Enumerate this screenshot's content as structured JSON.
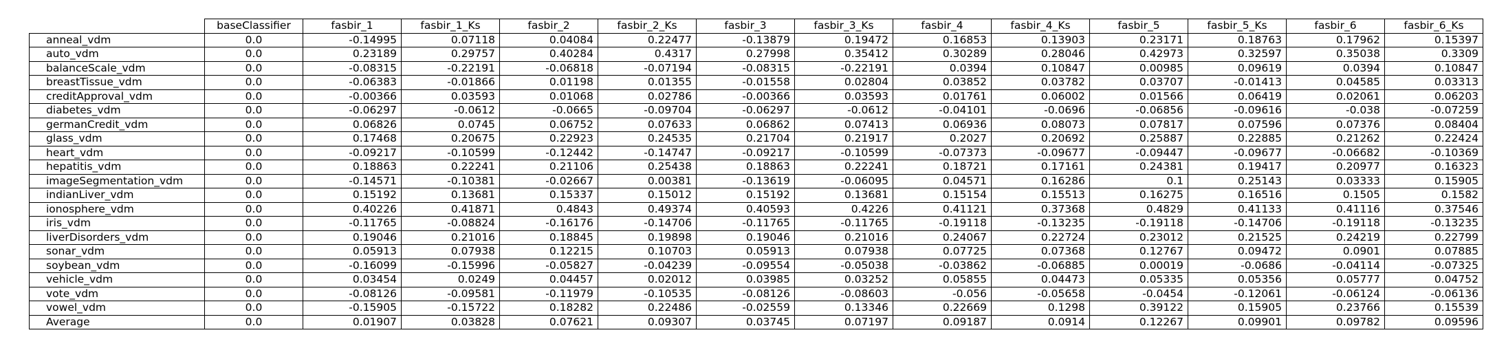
{
  "table": {
    "corner": "",
    "columns": [
      "baseClassifier",
      "fasbir_1",
      "fasbir_1_Ks",
      "fasbir_2",
      "fasbir_2_Ks",
      "fasbir_3",
      "fasbir_3_Ks",
      "fasbir_4",
      "fasbir_4_Ks",
      "fasbir_5",
      "fasbir_5_Ks",
      "fasbir_6",
      "fasbir_6_Ks"
    ],
    "rows": [
      {
        "name": "anneal_vdm",
        "values": [
          "0.0",
          "-0.14995",
          "0.07118",
          "0.04084",
          "0.22477",
          "-0.13879",
          "0.19472",
          "0.16853",
          "0.13903",
          "0.23171",
          "0.18763",
          "0.17962",
          "0.15397"
        ]
      },
      {
        "name": "auto_vdm",
        "values": [
          "0.0",
          "0.23189",
          "0.29757",
          "0.40284",
          "0.4317",
          "0.27998",
          "0.35412",
          "0.30289",
          "0.28046",
          "0.42973",
          "0.32597",
          "0.35038",
          "0.3309"
        ]
      },
      {
        "name": "balanceScale_vdm",
        "values": [
          "0.0",
          "-0.08315",
          "-0.22191",
          "-0.06818",
          "-0.07194",
          "-0.08315",
          "-0.22191",
          "0.0394",
          "0.10847",
          "0.00985",
          "0.09619",
          "0.0394",
          "0.10847"
        ]
      },
      {
        "name": "breastTissue_vdm",
        "values": [
          "0.0",
          "-0.06383",
          "-0.01866",
          "0.01198",
          "0.01355",
          "-0.01558",
          "0.02804",
          "0.03852",
          "0.03782",
          "0.03707",
          "-0.01413",
          "0.04585",
          "0.03313"
        ]
      },
      {
        "name": "creditApproval_vdm",
        "values": [
          "0.0",
          "-0.00366",
          "0.03593",
          "0.01068",
          "0.02786",
          "-0.00366",
          "0.03593",
          "0.01761",
          "0.06002",
          "0.01566",
          "0.06419",
          "0.02061",
          "0.06203"
        ]
      },
      {
        "name": "diabetes_vdm",
        "values": [
          "0.0",
          "-0.06297",
          "-0.0612",
          "-0.0665",
          "-0.09704",
          "-0.06297",
          "-0.0612",
          "-0.04101",
          "-0.0696",
          "-0.06856",
          "-0.09616",
          "-0.038",
          "-0.07259"
        ]
      },
      {
        "name": "germanCredit_vdm",
        "values": [
          "0.0",
          "0.06826",
          "0.0745",
          "0.06752",
          "0.07633",
          "0.06862",
          "0.07413",
          "0.06936",
          "0.08073",
          "0.07817",
          "0.07596",
          "0.07376",
          "0.08404"
        ]
      },
      {
        "name": "glass_vdm",
        "values": [
          "0.0",
          "0.17468",
          "0.20675",
          "0.22923",
          "0.24535",
          "0.21704",
          "0.21917",
          "0.2027",
          "0.20692",
          "0.25887",
          "0.22885",
          "0.21262",
          "0.22424"
        ]
      },
      {
        "name": "heart_vdm",
        "values": [
          "0.0",
          "-0.09217",
          "-0.10599",
          "-0.12442",
          "-0.14747",
          "-0.09217",
          "-0.10599",
          "-0.07373",
          "-0.09677",
          "-0.09447",
          "-0.09677",
          "-0.06682",
          "-0.10369"
        ]
      },
      {
        "name": "hepatitis_vdm",
        "values": [
          "0.0",
          "0.18863",
          "0.22241",
          "0.21106",
          "0.25438",
          "0.18863",
          "0.22241",
          "0.18721",
          "0.17161",
          "0.24381",
          "0.19417",
          "0.20977",
          "0.16323"
        ]
      },
      {
        "name": "imageSegmentation_vdm",
        "values": [
          "0.0",
          "-0.14571",
          "-0.10381",
          "-0.02667",
          "0.00381",
          "-0.13619",
          "-0.06095",
          "0.04571",
          "0.16286",
          "0.1",
          "0.25143",
          "0.03333",
          "0.15905"
        ]
      },
      {
        "name": "indianLiver_vdm",
        "values": [
          "0.0",
          "0.15192",
          "0.13681",
          "0.15337",
          "0.15012",
          "0.15192",
          "0.13681",
          "0.15154",
          "0.15513",
          "0.16275",
          "0.16516",
          "0.1505",
          "0.1582"
        ]
      },
      {
        "name": "ionosphere_vdm",
        "values": [
          "0.0",
          "0.40226",
          "0.41871",
          "0.4843",
          "0.49374",
          "0.40593",
          "0.4226",
          "0.41121",
          "0.37368",
          "0.4829",
          "0.41133",
          "0.41116",
          "0.37546"
        ]
      },
      {
        "name": "iris_vdm",
        "values": [
          "0.0",
          "-0.11765",
          "-0.08824",
          "-0.16176",
          "-0.14706",
          "-0.11765",
          "-0.11765",
          "-0.19118",
          "-0.13235",
          "-0.19118",
          "-0.14706",
          "-0.19118",
          "-0.13235"
        ]
      },
      {
        "name": "liverDisorders_vdm",
        "values": [
          "0.0",
          "0.19046",
          "0.21016",
          "0.18845",
          "0.19898",
          "0.19046",
          "0.21016",
          "0.24067",
          "0.22724",
          "0.23012",
          "0.21525",
          "0.24219",
          "0.22799"
        ]
      },
      {
        "name": "sonar_vdm",
        "values": [
          "0.0",
          "0.05913",
          "0.07938",
          "0.12215",
          "0.10703",
          "0.05913",
          "0.07938",
          "0.07725",
          "0.07368",
          "0.12767",
          "0.09472",
          "0.0901",
          "0.07885"
        ]
      },
      {
        "name": "soybean_vdm",
        "values": [
          "0.0",
          "-0.16099",
          "-0.15996",
          "-0.05827",
          "-0.04239",
          "-0.09554",
          "-0.05038",
          "-0.03862",
          "-0.06885",
          "0.00019",
          "-0.0686",
          "-0.04114",
          "-0.07325"
        ]
      },
      {
        "name": "vehicle_vdm",
        "values": [
          "0.0",
          "0.03454",
          "0.0249",
          "0.04457",
          "0.02012",
          "0.03985",
          "0.03252",
          "0.05855",
          "0.04473",
          "0.05335",
          "0.05356",
          "0.05777",
          "0.04752"
        ]
      },
      {
        "name": "vote_vdm",
        "values": [
          "0.0",
          "-0.08126",
          "-0.09581",
          "-0.11979",
          "-0.10535",
          "-0.08126",
          "-0.08603",
          "-0.056",
          "-0.05658",
          "-0.0454",
          "-0.12061",
          "-0.06124",
          "-0.06136"
        ]
      },
      {
        "name": "vowel_vdm",
        "values": [
          "0.0",
          "-0.15905",
          "-0.15722",
          "0.18282",
          "0.22486",
          "-0.02559",
          "0.13346",
          "0.22669",
          "0.1298",
          "0.39122",
          "0.15905",
          "0.23766",
          "0.15539"
        ]
      },
      {
        "name": "Average",
        "values": [
          "0.0",
          "0.01907",
          "0.03828",
          "0.07621",
          "0.09307",
          "0.03745",
          "0.07197",
          "0.09187",
          "0.0914",
          "0.12267",
          "0.09901",
          "0.09782",
          "0.09596"
        ]
      }
    ]
  }
}
